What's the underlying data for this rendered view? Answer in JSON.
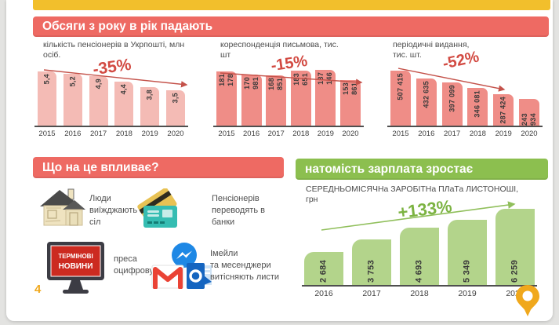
{
  "slide": {
    "header": "Обсяги з року в рік падають",
    "influences_header": "Що на це впливає?",
    "salary_header": "натомість зарплата зростає",
    "page_number": "4"
  },
  "influences": [
    {
      "icon": "house-icon",
      "text": "Люди\nвиїжджають з\nсіл"
    },
    {
      "icon": "bank-cards-icon",
      "text": "Пенсіонерів\nпереводять  в\nбанки"
    },
    {
      "icon": "tv-news-icon",
      "tv_line1": "ТЕРМІНОВІ",
      "tv_line2": "НОВИНИ",
      "text": "преса\nоцифровується"
    },
    {
      "icon": "messenger-gmail-outlook-icons",
      "text": "Імейли\nта месенджери\nвитісняють листи"
    }
  ],
  "chart_data": [
    {
      "type": "bar",
      "title": "кількість пенсіонерів в Укрпошті, млн\nосіб.",
      "categories": [
        "2015",
        "2016",
        "2017",
        "2018",
        "2019",
        "2020"
      ],
      "values": [
        5.4,
        5.2,
        4.9,
        4.4,
        3.8,
        3.5
      ],
      "value_labels": [
        "5,4",
        "5,2",
        "4,9",
        "4,4",
        "3,8",
        "3,5"
      ],
      "annotation": "-35%",
      "trend": "down",
      "bar_color": "#F4BBB5",
      "ylim": [
        0,
        5.4
      ],
      "grid": false
    },
    {
      "type": "bar",
      "title": "кореспонденція письмова, тис.\nшт",
      "categories": [
        "2015",
        "2016",
        "2017",
        "2018",
        "2019",
        "2020"
      ],
      "values": [
        181178,
        170981,
        168851,
        183651,
        187146,
        153861
      ],
      "value_labels": [
        "181 178",
        "170 981",
        "168 851",
        "183 651",
        "187 146",
        "153 861"
      ],
      "annotation": "-15%",
      "trend": "down",
      "bar_color": "#EF8D87",
      "ylim": [
        0,
        187146
      ],
      "grid": false
    },
    {
      "type": "bar",
      "title": "періодичні видання,\nтис. шт.",
      "categories": [
        "2015",
        "2016",
        "2017",
        "2018",
        "2019",
        "2020"
      ],
      "values": [
        507415,
        432635,
        397099,
        346081,
        287424,
        243934
      ],
      "value_labels": [
        "507 415",
        "432 635",
        "397 099",
        "346 081",
        "287 424",
        "243 934"
      ],
      "annotation": "-52%",
      "trend": "down",
      "bar_color": "#EF8D87",
      "ylim": [
        0,
        507415
      ],
      "grid": false
    },
    {
      "type": "bar",
      "title": "СЕРЕДНЬОМІСЯЧНа ЗАРОБІТНа ПЛаТа ЛИСТОНОШІ,\nгрн",
      "categories": [
        "2016",
        "2017",
        "2018",
        "2019",
        "2020"
      ],
      "values": [
        2684,
        3753,
        4693,
        5349,
        6259
      ],
      "value_labels": [
        "2 684",
        "3 753",
        "4 693",
        "5 349",
        "6 259"
      ],
      "annotation": "+133%",
      "trend": "up",
      "bar_color": "#B3D48B",
      "ylim": [
        0,
        6259
      ],
      "grid": false
    }
  ],
  "colors": {
    "accent_yellow": "#F2BF2C",
    "banner_red": "#EE6A63",
    "banner_green": "#8CBF4F",
    "bars_light_pink": "#F4BBB5",
    "bars_salmon": "#EF8D87",
    "bars_green": "#B3D48B",
    "annotation_red": "#D24A42",
    "annotation_green": "#7CB342",
    "pin_orange": "#F0A81C"
  }
}
